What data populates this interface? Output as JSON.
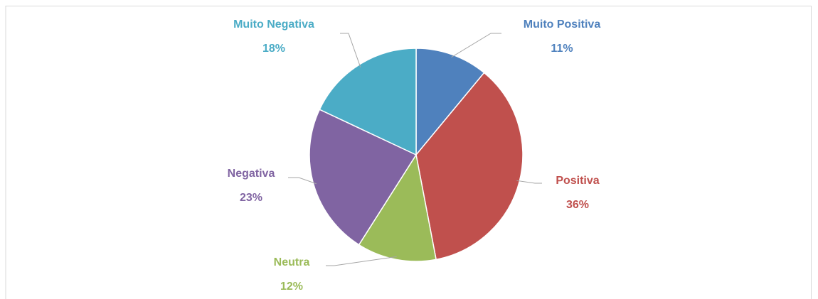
{
  "chart_data": {
    "type": "pie",
    "categories": [
      "Muito Positiva",
      "Positiva",
      "Neutra",
      "Negativa",
      "Muito Negativa"
    ],
    "values": [
      11,
      36,
      12,
      23,
      18
    ],
    "value_labels": [
      "11%",
      "36%",
      "12%",
      "23%",
      "18%"
    ],
    "colors": [
      "#4f81bd",
      "#c0504d",
      "#9bbb59",
      "#8064a2",
      "#4bacc6"
    ]
  }
}
